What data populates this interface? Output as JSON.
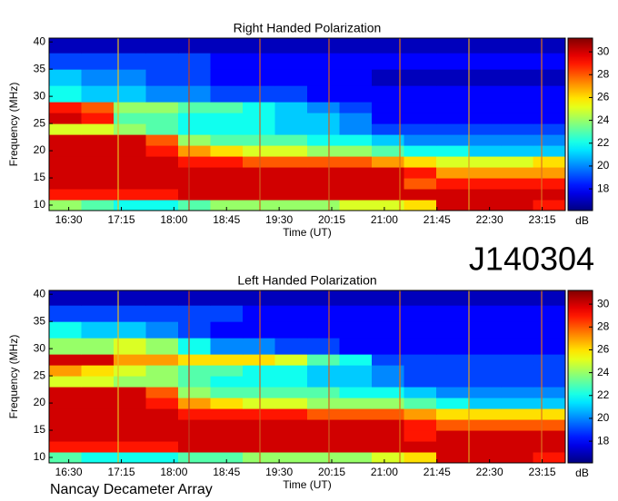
{
  "page": {
    "code": "J140304",
    "footer": "Nancay Decameter Array"
  },
  "chart_data": [
    {
      "type": "heatmap",
      "title": "Right Handed Polarization",
      "xlabel": "Time (UT)",
      "ylabel": "Frequency (MHz)",
      "colorbar_label": "dB",
      "colormap": "jet",
      "xlim": [
        16.22,
        23.58
      ],
      "ylim": [
        9,
        40.7
      ],
      "clim": [
        16.1,
        31.2
      ],
      "xticks": [
        {
          "value": 16.5,
          "label": "16:30"
        },
        {
          "value": 17.25,
          "label": "17:15"
        },
        {
          "value": 18,
          "label": "18:00"
        },
        {
          "value": 18.75,
          "label": "18:45"
        },
        {
          "value": 19.5,
          "label": "19:30"
        },
        {
          "value": 20.25,
          "label": "20:15"
        },
        {
          "value": 21,
          "label": "21:00"
        },
        {
          "value": 21.75,
          "label": "21:45"
        },
        {
          "value": 22.5,
          "label": "22:30"
        },
        {
          "value": 23.25,
          "label": "23:15"
        }
      ],
      "yticks": [
        10,
        15,
        20,
        25,
        30,
        35,
        40
      ],
      "cticks": [
        18,
        20,
        22,
        24,
        26,
        28,
        30
      ],
      "x_edges": [
        16.22,
        16.68,
        17.14,
        17.6,
        18.06,
        18.52,
        18.98,
        19.44,
        19.9,
        20.36,
        20.82,
        21.28,
        21.74,
        22.2,
        22.66,
        23.12,
        23.58
      ],
      "y_edges": [
        9,
        11,
        13,
        15,
        17,
        19,
        21,
        23,
        25,
        27,
        29,
        32,
        35,
        38,
        40.7
      ],
      "values": [
        [
          24,
          23,
          22,
          22,
          23,
          24,
          24,
          24,
          24,
          25,
          25,
          26,
          30,
          30,
          30,
          29
        ],
        [
          29,
          29,
          29,
          29,
          30,
          30,
          30,
          30,
          30,
          30,
          30,
          30,
          30,
          30,
          30,
          30
        ],
        [
          30,
          30,
          30,
          30,
          30,
          30,
          30,
          30,
          30,
          30,
          30,
          28,
          29,
          29,
          29,
          29
        ],
        [
          30,
          30,
          30,
          30,
          30,
          30,
          30,
          30,
          30,
          30,
          30,
          29,
          27,
          27,
          27,
          27
        ],
        [
          30,
          30,
          30,
          30,
          29,
          29,
          28,
          28,
          28,
          28,
          27,
          26,
          25,
          25,
          25,
          26
        ],
        [
          30,
          30,
          30,
          29,
          27,
          26,
          25,
          25,
          24,
          24,
          23,
          22,
          22,
          21,
          21,
          21
        ],
        [
          30,
          30,
          30,
          28,
          24,
          23,
          23,
          23,
          22,
          22,
          21,
          20,
          20,
          20,
          20,
          20
        ],
        [
          25,
          25,
          24,
          23,
          22,
          22,
          22,
          21,
          21,
          20,
          19,
          19,
          19,
          19,
          19,
          19
        ],
        [
          30,
          29,
          23,
          23,
          22,
          22,
          22,
          21,
          21,
          20,
          18,
          18,
          18,
          18,
          18,
          18
        ],
        [
          29,
          28,
          24,
          24,
          23,
          23,
          22,
          21,
          20,
          19,
          18,
          18,
          18,
          18,
          18,
          18
        ],
        [
          22,
          21,
          21,
          20,
          20,
          19,
          19,
          19,
          18,
          18,
          18,
          18,
          18,
          18,
          18,
          18
        ],
        [
          21,
          20,
          20,
          19,
          19,
          18,
          18,
          18,
          18,
          18,
          17,
          17,
          17,
          17,
          17,
          17
        ],
        [
          19,
          19,
          19,
          19,
          19,
          18,
          18,
          18,
          18,
          18,
          18,
          18,
          18,
          18,
          18,
          18
        ],
        [
          17,
          17,
          17,
          17,
          17,
          17,
          17,
          17,
          17,
          17,
          17,
          17,
          17,
          17,
          17,
          17
        ]
      ]
    },
    {
      "type": "heatmap",
      "title": "Left Handed Polarization",
      "xlabel": "Time (UT)",
      "ylabel": "Frequency (MHz)",
      "colorbar_label": "dB",
      "colormap": "jet",
      "xlim": [
        16.22,
        23.58
      ],
      "ylim": [
        9,
        40.7
      ],
      "clim": [
        16.1,
        31.2
      ],
      "xticks": [
        {
          "value": 16.5,
          "label": "16:30"
        },
        {
          "value": 17.25,
          "label": "17:15"
        },
        {
          "value": 18,
          "label": "18:00"
        },
        {
          "value": 18.75,
          "label": "18:45"
        },
        {
          "value": 19.5,
          "label": "19:30"
        },
        {
          "value": 20.25,
          "label": "20:15"
        },
        {
          "value": 21,
          "label": "21:00"
        },
        {
          "value": 21.75,
          "label": "21:45"
        },
        {
          "value": 22.5,
          "label": "22:30"
        },
        {
          "value": 23.25,
          "label": "23:15"
        }
      ],
      "yticks": [
        10,
        15,
        20,
        25,
        30,
        35,
        40
      ],
      "cticks": [
        18,
        20,
        22,
        24,
        26,
        28,
        30
      ],
      "x_edges": [
        16.22,
        16.68,
        17.14,
        17.6,
        18.06,
        18.52,
        18.98,
        19.44,
        19.9,
        20.36,
        20.82,
        21.28,
        21.74,
        22.2,
        22.66,
        23.12,
        23.58
      ],
      "y_edges": [
        9,
        11,
        13,
        15,
        17,
        19,
        21,
        23,
        25,
        27,
        29,
        32,
        35,
        38,
        40.7
      ],
      "values": [
        [
          23,
          22,
          22,
          22,
          23,
          23,
          24,
          24,
          24,
          24,
          25,
          26,
          30,
          30,
          30,
          29
        ],
        [
          29,
          29,
          29,
          29,
          30,
          30,
          30,
          30,
          30,
          30,
          30,
          30,
          30,
          30,
          30,
          30
        ],
        [
          30,
          30,
          30,
          30,
          30,
          30,
          30,
          30,
          30,
          30,
          30,
          29,
          30,
          30,
          30,
          30
        ],
        [
          30,
          30,
          30,
          30,
          30,
          30,
          30,
          30,
          30,
          30,
          30,
          29,
          28,
          28,
          28,
          28
        ],
        [
          30,
          30,
          30,
          30,
          29,
          29,
          29,
          29,
          28,
          28,
          28,
          27,
          26,
          26,
          26,
          26
        ],
        [
          30,
          30,
          30,
          29,
          27,
          26,
          25,
          25,
          24,
          24,
          24,
          23,
          22,
          21,
          21,
          21
        ],
        [
          30,
          30,
          30,
          28,
          24,
          23,
          23,
          23,
          23,
          22,
          22,
          21,
          20,
          20,
          20,
          20
        ],
        [
          25,
          25,
          24,
          24,
          23,
          22,
          22,
          22,
          21,
          21,
          20,
          19,
          19,
          19,
          19,
          19
        ],
        [
          27,
          26,
          25,
          24,
          23,
          23,
          22,
          22,
          21,
          21,
          20,
          19,
          19,
          19,
          19,
          19
        ],
        [
          30,
          30,
          27,
          27,
          26,
          26,
          26,
          25,
          23,
          22,
          19,
          19,
          19,
          19,
          19,
          19
        ],
        [
          24,
          24,
          25,
          24,
          22,
          20,
          20,
          19,
          19,
          18,
          18,
          18,
          18,
          18,
          18,
          18
        ],
        [
          22,
          21,
          21,
          20,
          19,
          18,
          18,
          18,
          18,
          18,
          18,
          18,
          18,
          18,
          18,
          18
        ],
        [
          19,
          19,
          19,
          19,
          19,
          19,
          18,
          18,
          18,
          18,
          18,
          18,
          18,
          18,
          18,
          18
        ],
        [
          17,
          17,
          17,
          17,
          17,
          17,
          17,
          17,
          17,
          17,
          17,
          17,
          17,
          17,
          17,
          17
        ]
      ]
    }
  ]
}
